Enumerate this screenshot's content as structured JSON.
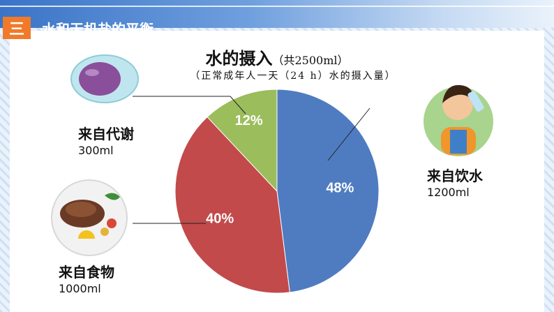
{
  "header": {
    "section_number": "三",
    "section_title": "水和无机盐的平衡"
  },
  "chart_data": {
    "type": "pie",
    "title": "水的摄入",
    "title_note": "（共2500ml）",
    "subtitle": "（正常成年人一天（24 h）水的摄入量）",
    "slices": [
      {
        "label": "来自饮水",
        "amount": "1200ml",
        "value": 48,
        "value_label": "48%",
        "color": "#4f7cc1"
      },
      {
        "label": "来自食物",
        "amount": "1000ml",
        "value": 40,
        "value_label": "40%",
        "color": "#c24a4a"
      },
      {
        "label": "来自代谢",
        "amount": "300ml",
        "value": 12,
        "value_label": "12%",
        "color": "#9bbd5c"
      }
    ]
  },
  "icons": {
    "cell": "cell-illustration-icon",
    "food": "steak-plate-icon",
    "drink": "boy-drinking-water-icon"
  }
}
